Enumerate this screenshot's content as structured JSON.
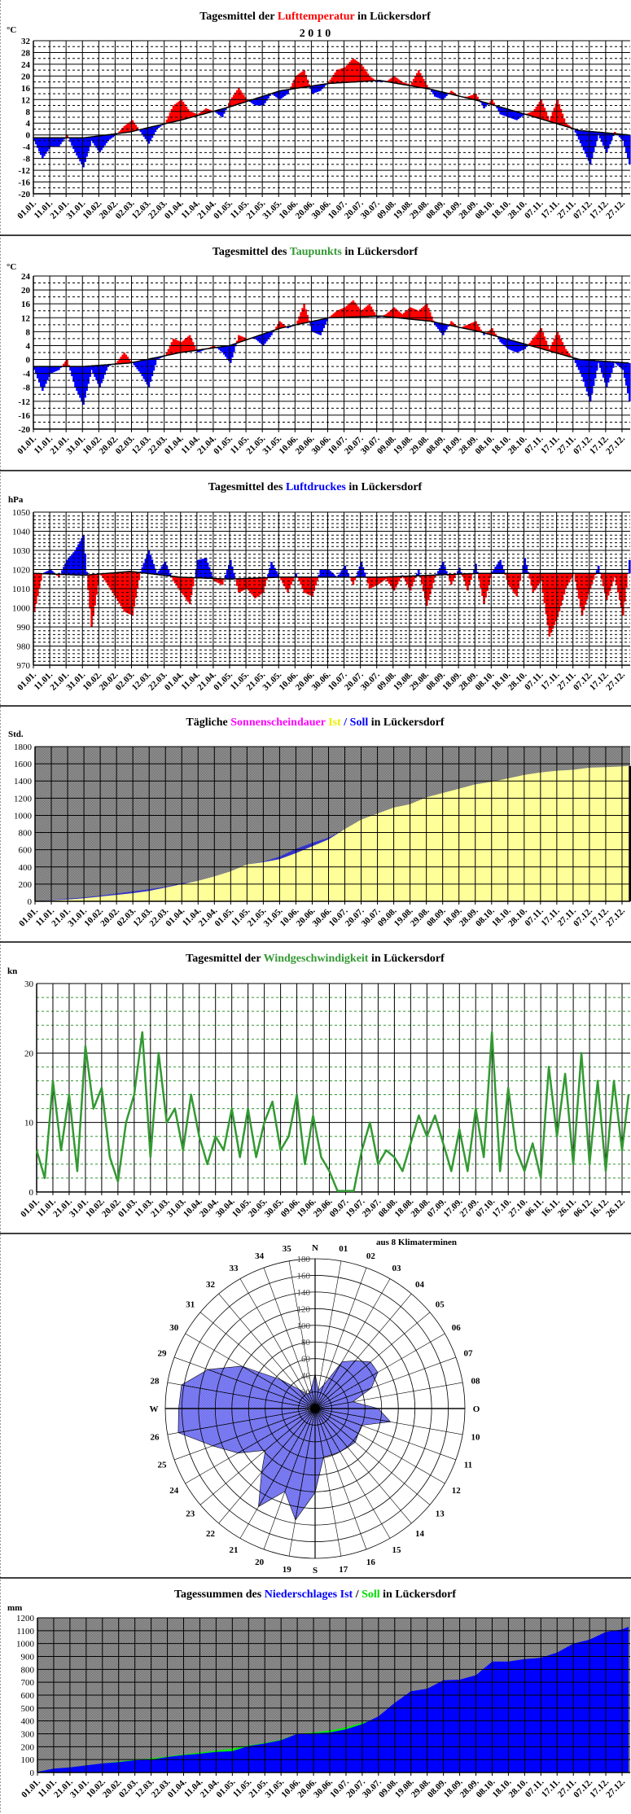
{
  "x_ticks": {
    "standard": [
      "01.01.",
      "11.01.",
      "21.01.",
      "31.01.",
      "10.02.",
      "20.02.",
      "02.03.",
      "12.03.",
      "22.03.",
      "01.04.",
      "11.04.",
      "21.04.",
      "01.05.",
      "11.05.",
      "21.05.",
      "31.05.",
      "10.06.",
      "20.06.",
      "30.06.",
      "10.07.",
      "20.07.",
      "30.07.",
      "09.08.",
      "19.08.",
      "29.08.",
      "08.09.",
      "18.09.",
      "28.09.",
      "08.10.",
      "18.10.",
      "28.10.",
      "07.11.",
      "17.11.",
      "27.11.",
      "07.12.",
      "17.12.",
      "27.12."
    ],
    "wind": [
      "01.01.",
      "11.01.",
      "21.01.",
      "31.01.",
      "10.02.",
      "20.02.",
      "01.03.",
      "11.03.",
      "21.03.",
      "31.03.",
      "10.04.",
      "20.04.",
      "30.04.",
      "10.05.",
      "20.05.",
      "30.05.",
      "09.06.",
      "19.06.",
      "29.06.",
      "09.07.",
      "19.07.",
      "29.07.",
      "08.08.",
      "18.08.",
      "28.08.",
      "07.09.",
      "17.09.",
      "27.09.",
      "07.10.",
      "17.10.",
      "27.10.",
      "06.11.",
      "16.11.",
      "26.11.",
      "06.12.",
      "16.12.",
      "26.12."
    ]
  },
  "colors": {
    "above": "#ff0000",
    "below": "#0000ff",
    "wind": "#339933",
    "sun_ist": "#ffff99",
    "sun_soll": "#3333cc",
    "rain_ist": "#0000ff",
    "rain_soll": "#00ee00",
    "rose": "#7878f0",
    "background": "#888888"
  },
  "chart_data": [
    {
      "type": "area",
      "kind": "anomaly",
      "title_parts": [
        "Tagesmittel der ",
        "Lufttemperatur",
        " in Lückersdorf"
      ],
      "subtitle": "2 0 1 0",
      "unit": "°C",
      "ylim": [
        -20,
        32
      ],
      "major": 4,
      "minor": 2,
      "xticks": "standard",
      "grid": true,
      "above_color": "#ff0000",
      "below_color": "#0000ff",
      "step_days": 5,
      "values": [
        -2,
        -8,
        -4,
        -4,
        0,
        -6,
        -11,
        -2,
        -6,
        -2,
        0,
        3,
        5,
        1,
        -3,
        2,
        4,
        10,
        12,
        8,
        7,
        9,
        8,
        6,
        12,
        16,
        12,
        10,
        10,
        14,
        12,
        14,
        20,
        22,
        14,
        15,
        18,
        22,
        23,
        26,
        24,
        20,
        18,
        18,
        20,
        18,
        17,
        22,
        17,
        13,
        12,
        15,
        13,
        13,
        14,
        9,
        12,
        7,
        6,
        5,
        7,
        8,
        12,
        5,
        12,
        4,
        2,
        -4,
        -10,
        0,
        -6,
        1,
        -2,
        -10
      ],
      "normal_monthly": [
        -1,
        -1,
        1,
        5,
        9.5,
        15,
        17.5,
        18.5,
        15.5,
        11.5,
        6.5,
        1.5,
        0
      ]
    },
    {
      "type": "area",
      "kind": "anomaly",
      "title_parts": [
        "Tagesmittel des ",
        "Taupunkts",
        " in Lückersdorf"
      ],
      "unit": "°C",
      "ylim": [
        -20,
        24
      ],
      "major": 4,
      "minor": 2,
      "xticks": "standard",
      "grid": true,
      "above_color": "#ff0000",
      "below_color": "#0000ff",
      "step_days": 5,
      "values": [
        -3,
        -9,
        -4,
        -3,
        0,
        -8,
        -13,
        -3,
        -8,
        -2,
        -1,
        2,
        -1,
        -4,
        -8,
        0,
        1,
        6,
        5,
        7,
        2,
        3,
        4,
        2,
        -1,
        7,
        6,
        6,
        4,
        7,
        11,
        9,
        10,
        16,
        8,
        7,
        12,
        14,
        15,
        17,
        14,
        16,
        12,
        13,
        15,
        13,
        15,
        14,
        16,
        10,
        7,
        11,
        9,
        10,
        11,
        7,
        9,
        5,
        3,
        2,
        3,
        6,
        9,
        3,
        8,
        3,
        0,
        -5,
        -12,
        -1,
        -8,
        -1,
        -3,
        -12
      ],
      "normal_monthly": [
        -2,
        -2,
        -1,
        2,
        4,
        9,
        12,
        12.5,
        11,
        8,
        4,
        0,
        -1
      ]
    },
    {
      "type": "area",
      "kind": "anomaly",
      "title_parts": [
        "Tagesmittel des ",
        "Luftdruckes",
        " in Lückersdorf"
      ],
      "unit": "hPa",
      "ylim": [
        970,
        1050
      ],
      "major": 10,
      "minor": 2,
      "xticks": "standard",
      "grid": true,
      "above_color": "#0000ff",
      "below_color": "#ff0000",
      "step_days": 5,
      "values": [
        998,
        1018,
        1020,
        1016,
        1025,
        1030,
        1038,
        990,
        1018,
        1012,
        1005,
        998,
        996,
        1019,
        1030,
        1018,
        1024,
        1014,
        1008,
        1002,
        1025,
        1026,
        1014,
        1012,
        1025,
        1008,
        1010,
        1005,
        1008,
        1024,
        1016,
        1008,
        1018,
        1008,
        1006,
        1020,
        1020,
        1016,
        1022,
        1012,
        1024,
        1010,
        1012,
        1015,
        1009,
        1017,
        1009,
        1020,
        1001,
        1016,
        1024,
        1012,
        1021,
        1009,
        1023,
        1002,
        1019,
        1025,
        1012,
        1006,
        1026,
        1008,
        1014,
        985,
        995,
        1010,
        1018,
        996,
        1010,
        1022,
        1004,
        1016,
        996,
        1025
      ],
      "normal_monthly": [
        1018,
        1017,
        1019,
        1016,
        1015,
        1016,
        1016,
        1016,
        1017,
        1018,
        1018,
        1018,
        1018
      ]
    },
    {
      "type": "area",
      "kind": "cumulative",
      "title_parts": [
        "Tägliche ",
        "Sonnenscheindauer",
        " ",
        "Ist",
        " / ",
        "Soll",
        " in Lückersdorf"
      ],
      "unit": "Std.",
      "ylim": [
        0,
        1800
      ],
      "major": 200,
      "xticks": "standard",
      "grid": true,
      "step_days": 10,
      "series": [
        {
          "name": "Soll",
          "color": "#3333cc",
          "values": [
            0,
            15,
            30,
            45,
            65,
            90,
            115,
            140,
            170,
            210,
            240,
            290,
            350,
            430,
            460,
            520,
            610,
            680,
            740,
            840,
            940,
            1010,
            1080,
            1120,
            1200,
            1250,
            1300,
            1350,
            1380,
            1420,
            1460,
            1490,
            1510,
            1520,
            1545,
            1550,
            1560,
            1565
          ]
        },
        {
          "name": "Ist",
          "color": "#ffff99",
          "values": [
            0,
            10,
            20,
            35,
            55,
            75,
            95,
            120,
            160,
            200,
            240,
            290,
            350,
            430,
            455,
            490,
            560,
            640,
            720,
            840,
            950,
            1020,
            1090,
            1130,
            1210,
            1260,
            1310,
            1360,
            1390,
            1430,
            1470,
            1500,
            1520,
            1530,
            1555,
            1560,
            1570,
            1575
          ]
        }
      ]
    },
    {
      "type": "line",
      "title_parts": [
        "Tagesmittel der ",
        "Windgeschwindigkeit",
        " in Lückersdorf"
      ],
      "unit": "kn",
      "ylim": [
        0,
        30
      ],
      "major": 10,
      "minor": 2,
      "xticks": "wind",
      "grid": true,
      "color": "#339933",
      "step_days": 5,
      "values": [
        6,
        2,
        16,
        6,
        14,
        3,
        21,
        12,
        15,
        5,
        1.5,
        10,
        14,
        23,
        5,
        20,
        10,
        12,
        6,
        14,
        8,
        4,
        8,
        6,
        12,
        5,
        12,
        5,
        10,
        13,
        6,
        8,
        14,
        4,
        11,
        5,
        3,
        0,
        0,
        0,
        6,
        10,
        4,
        6,
        5,
        3,
        7,
        11,
        8,
        11,
        7,
        3,
        9,
        3,
        12,
        5,
        23,
        3,
        15,
        6,
        3,
        7,
        2,
        18,
        8,
        17,
        4,
        20,
        4,
        16,
        3,
        16,
        6,
        14
      ]
    },
    {
      "type": "polar",
      "annotation": "aus 8 Klimaterminen",
      "rlim": [
        0,
        180
      ],
      "ring_step": 20,
      "ring_labels": [
        "0",
        "20",
        "40",
        "60",
        "80",
        "100",
        "120",
        "140",
        "160",
        "180"
      ],
      "direction_labels": [
        "01",
        "02",
        "03",
        "04",
        "05",
        "06",
        "07",
        "08",
        "O",
        "10",
        "11",
        "12",
        "13",
        "14",
        "15",
        "16",
        "17",
        "S",
        "19",
        "20",
        "21",
        "22",
        "23",
        "24",
        "25",
        "26",
        "W",
        "28",
        "29",
        "30",
        "31",
        "32",
        "33",
        "34",
        "35",
        "N"
      ],
      "values": [
        22,
        30,
        65,
        75,
        87,
        87,
        72,
        46,
        76,
        92,
        59,
        60,
        63,
        61,
        60,
        59,
        59,
        101,
        136,
        106,
        136,
        100,
        78,
        107,
        131,
        167,
        164,
        163,
        137,
        102,
        54,
        30,
        20,
        20,
        25,
        42
      ]
    },
    {
      "type": "area",
      "kind": "cumulative",
      "title_parts": [
        "Tagessummen des ",
        "Niederschlages Ist",
        " / ",
        "Soll",
        " in Lückersdorf"
      ],
      "unit": "mm",
      "ylim": [
        0,
        1200
      ],
      "major": 100,
      "xticks": "standard",
      "grid": true,
      "step_days": 10,
      "series": [
        {
          "name": "Soll",
          "color": "#00ee00",
          "values": [
            5,
            30,
            40,
            55,
            70,
            85,
            100,
            110,
            125,
            140,
            155,
            170,
            185,
            210,
            230,
            255,
            300,
            310,
            325,
            350,
            385,
            420,
            440,
            460,
            480,
            500,
            515,
            530,
            545,
            560,
            575,
            590,
            605,
            620,
            635,
            650,
            665,
            670
          ]
        },
        {
          "name": "Ist",
          "color": "#0000ff",
          "values": [
            5,
            30,
            40,
            55,
            70,
            80,
            95,
            100,
            120,
            135,
            145,
            160,
            165,
            205,
            225,
            250,
            300,
            305,
            310,
            335,
            375,
            435,
            540,
            630,
            650,
            715,
            720,
            755,
            860,
            860,
            880,
            890,
            930,
            1000,
            1030,
            1090,
            1110,
            1130
          ]
        }
      ]
    }
  ]
}
